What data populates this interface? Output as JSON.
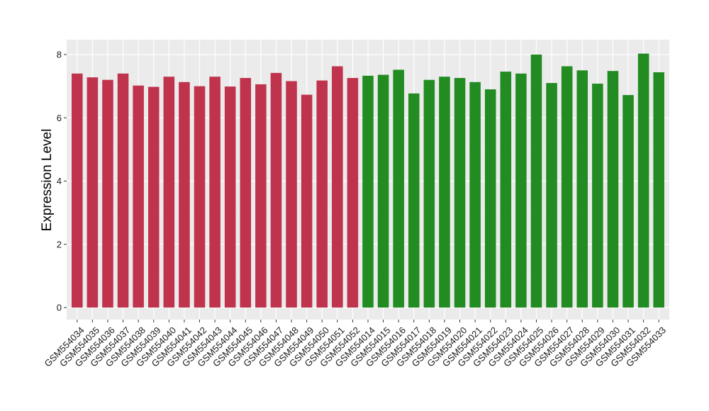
{
  "chart_data": {
    "type": "bar",
    "title": "",
    "xlabel": "",
    "ylabel": "Expression Level",
    "ylim": [
      0,
      8.2
    ],
    "yticks": [
      0,
      2,
      4,
      6,
      8
    ],
    "grid": true,
    "legend": "none",
    "background": "#ebebeb",
    "categories": [
      "GSM554034",
      "GSM554035",
      "GSM554036",
      "GSM554037",
      "GSM554038",
      "GSM554039",
      "GSM554040",
      "GSM554041",
      "GSM554042",
      "GSM554043",
      "GSM554044",
      "GSM554045",
      "GSM554046",
      "GSM554047",
      "GSM554048",
      "GSM554049",
      "GSM554050",
      "GSM554051",
      "GSM554052",
      "GSM554014",
      "GSM554015",
      "GSM554016",
      "GSM554017",
      "GSM554018",
      "GSM554019",
      "GSM554020",
      "GSM554021",
      "GSM554022",
      "GSM554023",
      "GSM554024",
      "GSM554025",
      "GSM554026",
      "GSM554027",
      "GSM554028",
      "GSM554029",
      "GSM554030",
      "GSM554031",
      "GSM554032",
      "GSM554033"
    ],
    "values": [
      7.4,
      7.28,
      7.2,
      7.4,
      7.02,
      6.98,
      7.3,
      7.13,
      7.0,
      7.3,
      6.99,
      7.26,
      7.06,
      7.42,
      7.16,
      6.73,
      7.18,
      7.63,
      7.26,
      7.33,
      7.36,
      7.52,
      6.77,
      7.2,
      7.3,
      7.26,
      7.13,
      6.9,
      7.46,
      7.4,
      8.0,
      7.1,
      7.63,
      7.5,
      7.08,
      7.48,
      6.72,
      8.03,
      7.44
    ],
    "bar_colors": [
      "#c0334d",
      "#c0334d",
      "#c0334d",
      "#c0334d",
      "#c0334d",
      "#c0334d",
      "#c0334d",
      "#c0334d",
      "#c0334d",
      "#c0334d",
      "#c0334d",
      "#c0334d",
      "#c0334d",
      "#c0334d",
      "#c0334d",
      "#c0334d",
      "#c0334d",
      "#c0334d",
      "#c0334d",
      "#228b22",
      "#228b22",
      "#228b22",
      "#228b22",
      "#228b22",
      "#228b22",
      "#228b22",
      "#228b22",
      "#228b22",
      "#228b22",
      "#228b22",
      "#228b22",
      "#228b22",
      "#228b22",
      "#228b22",
      "#228b22",
      "#228b22",
      "#228b22",
      "#228b22",
      "#228b22"
    ]
  }
}
